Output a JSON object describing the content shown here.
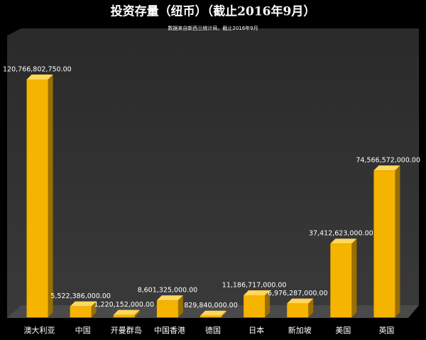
{
  "chart_data": {
    "type": "bar3d",
    "title": "投资存量（纽币）（截止2016年9月）",
    "subtitle": "数据来自新西兰统计局，截止2016年9月",
    "categories": [
      "澳大利亚",
      "中国",
      "开曼群岛",
      "中国香港",
      "德国",
      "日本",
      "新加坡",
      "美国",
      "英国"
    ],
    "values": [
      120766802750,
      5522386000,
      1220152000,
      8601325000,
      829840000,
      11186717000,
      6976287000,
      37412623000,
      74566572000
    ],
    "value_labels": [
      "120,766,802,750.00",
      "5,522,386,000.00",
      "1,220,152,000.00",
      "8,601,325,000.00",
      "829,840,000.00",
      "11,186,717,000.00",
      "6,976,287,000.00",
      "37,412,623,000.00",
      "74,566,572,000.00"
    ],
    "color": "#f5b400"
  }
}
